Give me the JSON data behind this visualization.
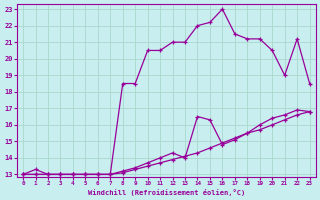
{
  "xlabel": "Windchill (Refroidissement éolien,°C)",
  "bg_color": "#c8eef0",
  "line_color": "#990099",
  "grid_color": "#aad8cc",
  "line1_x": [
    0,
    1,
    2,
    3,
    4,
    5,
    6,
    7,
    8,
    9,
    10,
    11,
    12,
    13,
    14,
    15,
    16,
    17,
    18,
    19,
    20,
    21,
    22,
    23
  ],
  "line1_y": [
    13.0,
    13.0,
    13.0,
    13.0,
    13.0,
    13.0,
    13.0,
    13.0,
    13.1,
    13.3,
    13.5,
    13.7,
    13.9,
    14.1,
    14.3,
    14.6,
    14.9,
    15.2,
    15.5,
    15.7,
    16.0,
    16.3,
    16.6,
    16.8
  ],
  "line2_x": [
    0,
    1,
    2,
    3,
    4,
    5,
    6,
    7,
    8,
    9,
    10,
    11,
    12,
    13,
    14,
    15,
    16,
    17,
    18,
    19,
    20,
    21,
    22,
    23
  ],
  "line2_y": [
    13.0,
    13.3,
    13.0,
    13.0,
    13.0,
    13.0,
    13.0,
    13.0,
    13.2,
    13.4,
    13.7,
    14.0,
    14.3,
    14.0,
    16.5,
    16.3,
    14.8,
    15.1,
    15.5,
    16.0,
    16.4,
    16.6,
    16.9,
    16.8
  ],
  "line3_x": [
    0,
    1,
    2,
    3,
    4,
    5,
    6,
    7,
    8,
    9,
    10,
    11,
    12,
    13,
    14,
    15,
    16,
    17,
    18,
    19,
    20,
    21,
    22,
    23
  ],
  "line3_y": [
    13.0,
    13.0,
    13.0,
    13.0,
    13.0,
    13.0,
    13.0,
    13.0,
    18.5,
    18.5,
    20.5,
    20.5,
    21.0,
    21.0,
    22.0,
    22.2,
    23.0,
    21.5,
    21.2,
    21.2,
    20.5,
    19.0,
    21.2,
    18.5
  ],
  "xlim": [
    -0.5,
    23.5
  ],
  "ylim": [
    12.85,
    23.3
  ],
  "xticks": [
    0,
    1,
    2,
    3,
    4,
    5,
    6,
    7,
    8,
    9,
    10,
    11,
    12,
    13,
    14,
    15,
    16,
    17,
    18,
    19,
    20,
    21,
    22,
    23
  ],
  "yticks": [
    13,
    14,
    15,
    16,
    17,
    18,
    19,
    20,
    21,
    22,
    23
  ]
}
